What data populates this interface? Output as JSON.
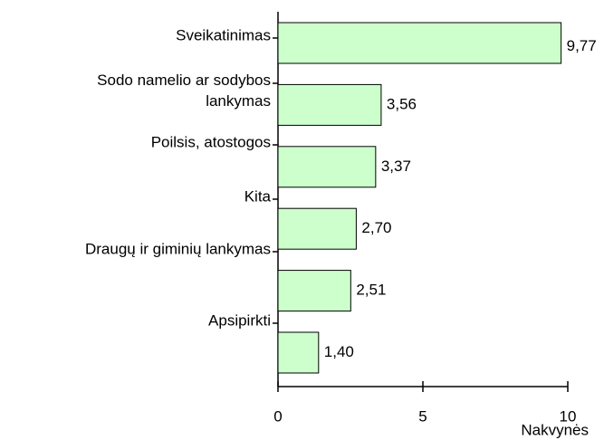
{
  "chart_data": {
    "type": "bar",
    "orientation": "horizontal",
    "categories": [
      "Sveikatinimas",
      "Sodo namelio ar sodybos lankymas",
      "Poilsis, atostogos",
      "Kita",
      "Draugų ir giminių lankymas",
      "Apsipirkti"
    ],
    "values": [
      9.77,
      3.56,
      3.37,
      2.7,
      2.51,
      1.4
    ],
    "value_labels": [
      "9,77",
      "3,56",
      "3,37",
      "2,70",
      "2,51",
      "1,40"
    ],
    "color": "#ccffcc",
    "xlabel": "Nakvynės",
    "xlim": [
      0,
      10
    ],
    "xticks": [
      0,
      5,
      10
    ]
  }
}
